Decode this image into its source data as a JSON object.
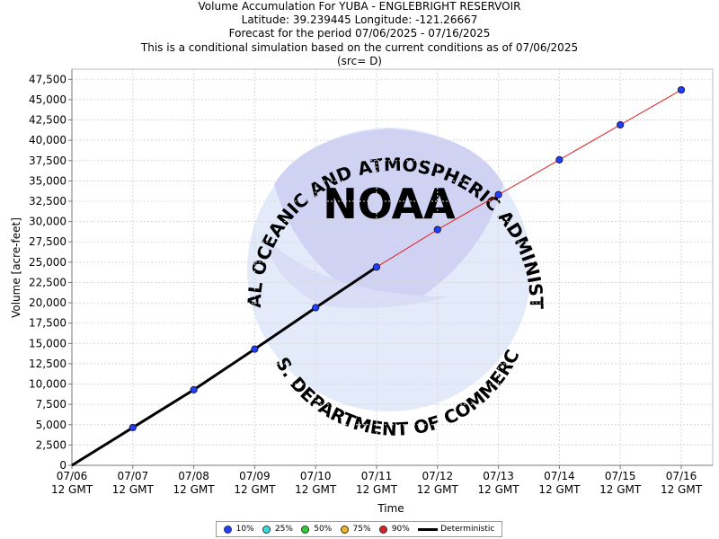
{
  "titles": {
    "line1": "Volume Accumulation For YUBA - ENGLEBRIGHT RESERVOIR",
    "line2": "Latitude: 39.239445 Longitude: -121.26667",
    "line3": "Forecast for the period 07/06/2025 - 07/16/2025",
    "line4": "This is a conditional simulation based on the current conditions as of 07/06/2025",
    "line5": "(src= D)"
  },
  "watermark": {
    "logo_text": "NOAA",
    "arc_top": "NATIONAL OCEANIC AND ATMOSPHERIC ADMINISTRATION",
    "arc_bottom": "U.S. DEPARTMENT OF COMMERCE"
  },
  "legend": {
    "items": [
      {
        "label": "10%",
        "color": "#1f3fff"
      },
      {
        "label": "25%",
        "color": "#2fe0e0"
      },
      {
        "label": "50%",
        "color": "#33cc33"
      },
      {
        "label": "75%",
        "color": "#f0b429"
      },
      {
        "label": "90%",
        "color": "#e02020"
      }
    ],
    "deterministic_label": "Deterministic"
  },
  "chart_data": {
    "type": "line",
    "xlabel": "Time",
    "ylabel": "Volume [acre-feet]",
    "ylim": [
      0,
      48750
    ],
    "y_ticks": [
      0,
      2500,
      5000,
      7500,
      10000,
      12500,
      15000,
      17500,
      20000,
      22500,
      25000,
      27500,
      30000,
      32500,
      35000,
      37500,
      40000,
      42500,
      45000,
      47500
    ],
    "y_tick_labels": [
      "0",
      "2,500",
      "5,000",
      "7,500",
      "10,000",
      "12,500",
      "15,000",
      "17,500",
      "20,000",
      "22,500",
      "25,000",
      "27,500",
      "30,000",
      "32,500",
      "35,000",
      "37,500",
      "40,000",
      "42,500",
      "45,000",
      "47,500"
    ],
    "categories": [
      "07/06 12 GMT",
      "07/07 12 GMT",
      "07/08 12 GMT",
      "07/09 12 GMT",
      "07/10 12 GMT",
      "07/11 12 GMT",
      "07/12 12 GMT",
      "07/13 12 GMT",
      "07/14 12 GMT",
      "07/15 12 GMT",
      "07/16 12 GMT"
    ],
    "x_tick_labels": [
      [
        "07/06",
        "12 GMT"
      ],
      [
        "07/07",
        "12 GMT"
      ],
      [
        "07/08",
        "12 GMT"
      ],
      [
        "07/09",
        "12 GMT"
      ],
      [
        "07/10",
        "12 GMT"
      ],
      [
        "07/11",
        "12 GMT"
      ],
      [
        "07/12",
        "12 GMT"
      ],
      [
        "07/13",
        "12 GMT"
      ],
      [
        "07/14",
        "12 GMT"
      ],
      [
        "07/15",
        "12 GMT"
      ],
      [
        "07/16",
        "12 GMT"
      ]
    ],
    "grid": true,
    "legend_position": "bottom",
    "series": [
      {
        "name": "Deterministic",
        "color": "#000000",
        "values": [
          0,
          4650,
          9300,
          14300,
          19400,
          24400,
          null,
          null,
          null,
          null,
          null
        ]
      },
      {
        "name": "90%",
        "color": "#e02020",
        "values": [
          null,
          null,
          null,
          null,
          null,
          24400,
          29000,
          33300,
          37600,
          41900,
          46200
        ]
      },
      {
        "name": "10%",
        "color": "#1f3fff",
        "values": [
          null,
          4650,
          9300,
          14300,
          19400,
          24400,
          29000,
          33300,
          37600,
          41900,
          46200
        ]
      }
    ]
  }
}
